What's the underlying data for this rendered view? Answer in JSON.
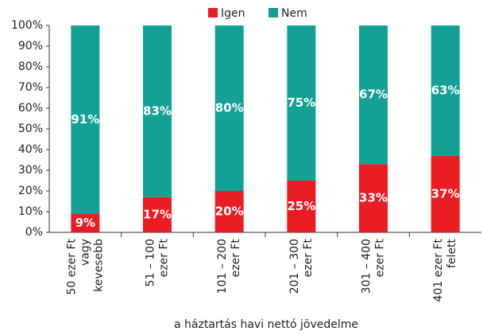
{
  "chart_data": {
    "type": "stacked_bar",
    "categories": [
      [
        "50 ezer Ft",
        "vagy",
        "kevesebb"
      ],
      [
        "51 – 100",
        "ezer Ft"
      ],
      [
        "101 – 200",
        "ezer Ft"
      ],
      [
        "201 – 300",
        "ezer Ft"
      ],
      [
        "301 – 400",
        "ezer Ft"
      ],
      [
        "401 ezer Ft",
        "felett"
      ]
    ],
    "series": [
      {
        "name": "Igen",
        "color": "#ec1c24",
        "values": [
          9,
          17,
          20,
          25,
          33,
          37
        ],
        "value_labels": [
          "9%",
          "17%",
          "20%",
          "25%",
          "33%",
          "37%"
        ]
      },
      {
        "name": "Nem",
        "color": "#14a195",
        "values": [
          91,
          83,
          80,
          75,
          67,
          63
        ],
        "value_labels": [
          "91%",
          "83%",
          "80%",
          "75%",
          "67%",
          "63%"
        ]
      }
    ],
    "x_label": "a háztartás havi nettó jövedelme",
    "ylim": [
      0,
      100
    ],
    "yticks": [
      {
        "value": 0,
        "label": "0%"
      },
      {
        "value": 10,
        "label": "10%"
      },
      {
        "value": 20,
        "label": "20%"
      },
      {
        "value": 30,
        "label": "30%"
      },
      {
        "value": 40,
        "label": "40%"
      },
      {
        "value": 50,
        "label": "50%"
      },
      {
        "value": 60,
        "label": "60%"
      },
      {
        "value": 70,
        "label": "70%"
      },
      {
        "value": 80,
        "label": "80%"
      },
      {
        "value": 90,
        "label": "90%"
      },
      {
        "value": 100,
        "label": "100%"
      }
    ],
    "legend": "top"
  }
}
